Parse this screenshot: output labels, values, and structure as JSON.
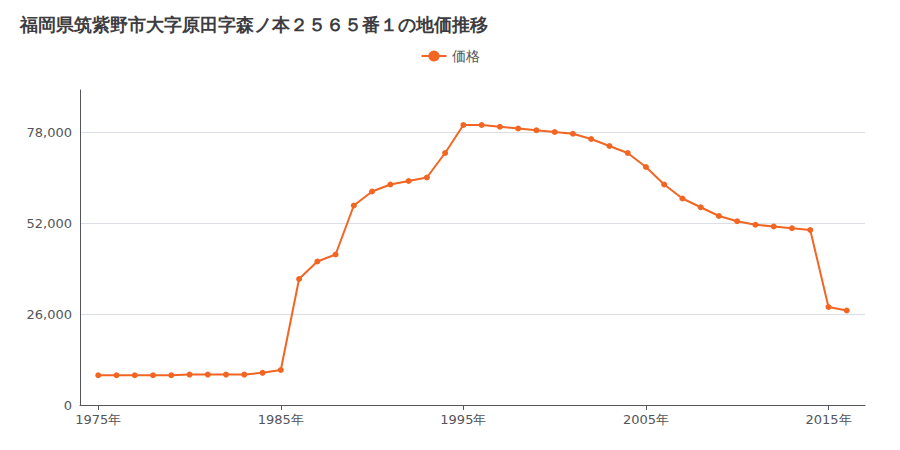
{
  "chart_data": {
    "type": "line",
    "title": "福岡県筑紫野市大字原田字森ノ本２５６５番１の地価推移",
    "x": [
      1975,
      1976,
      1977,
      1978,
      1979,
      1980,
      1981,
      1982,
      1983,
      1984,
      1985,
      1986,
      1987,
      1988,
      1989,
      1990,
      1991,
      1992,
      1993,
      1994,
      1995,
      1996,
      1997,
      1998,
      1999,
      2000,
      2001,
      2002,
      2003,
      2004,
      2005,
      2006,
      2007,
      2008,
      2009,
      2010,
      2011,
      2012,
      2013,
      2014,
      2015,
      2016
    ],
    "series": [
      {
        "name": "価格",
        "color": "#F26522",
        "marker": "circle",
        "values": [
          8500,
          8500,
          8500,
          8500,
          8500,
          8700,
          8700,
          8700,
          8700,
          9200,
          10000,
          36000,
          41000,
          43000,
          57000,
          61000,
          63000,
          64000,
          65000,
          72000,
          80000,
          80000,
          79500,
          79000,
          78500,
          78000,
          77500,
          76000,
          74000,
          72000,
          68000,
          63000,
          59000,
          56500,
          54000,
          52500,
          51500,
          51000,
          50500,
          50000,
          28000,
          27000
        ]
      }
    ],
    "xlim": [
      1974,
      2017
    ],
    "xticks": [
      {
        "value": 1975,
        "label": "1975年"
      },
      {
        "value": 1985,
        "label": "1985年"
      },
      {
        "value": 1995,
        "label": "1995年"
      },
      {
        "value": 2005,
        "label": "2005年"
      },
      {
        "value": 2015,
        "label": "2015年"
      }
    ],
    "ylim": [
      0,
      90000
    ],
    "yticks": [
      0,
      {
        "value": 26000,
        "label": "26,000"
      },
      {
        "value": 52000,
        "label": "52,000"
      },
      {
        "value": 78000,
        "label": "78,000"
      }
    ],
    "grid": true,
    "legend": "top"
  }
}
